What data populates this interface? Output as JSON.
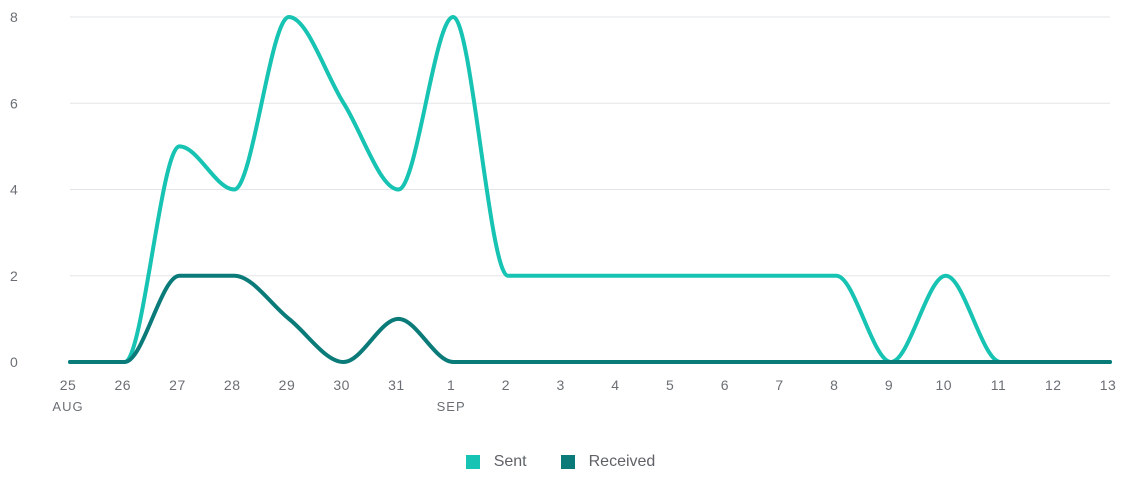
{
  "chart_data": {
    "type": "line",
    "title": "",
    "xlabel": "",
    "ylabel": "",
    "ylim": [
      0,
      8
    ],
    "y_ticks": [
      "0",
      "2",
      "4",
      "6",
      "8"
    ],
    "categories": [
      "25",
      "26",
      "27",
      "28",
      "29",
      "30",
      "31",
      "1",
      "2",
      "3",
      "4",
      "5",
      "6",
      "7",
      "8",
      "9",
      "10",
      "11",
      "12",
      "13"
    ],
    "month_labels": [
      {
        "at": "25",
        "label": "AUG"
      },
      {
        "at": "1",
        "label": "SEP"
      }
    ],
    "grid": true,
    "legend_position": "bottom-center",
    "series": [
      {
        "name": "Sent",
        "color": "#17c3b2",
        "values": [
          0,
          0,
          5,
          4,
          8,
          6,
          4,
          8,
          2,
          2,
          2,
          2,
          2,
          2,
          2,
          0,
          2,
          0,
          0,
          0
        ]
      },
      {
        "name": "Received",
        "color": "#0b7b7a",
        "values": [
          0,
          0,
          2,
          2,
          1,
          0,
          1,
          0,
          0,
          0,
          0,
          0,
          0,
          0,
          0,
          0,
          0,
          0,
          0,
          0
        ]
      }
    ]
  }
}
